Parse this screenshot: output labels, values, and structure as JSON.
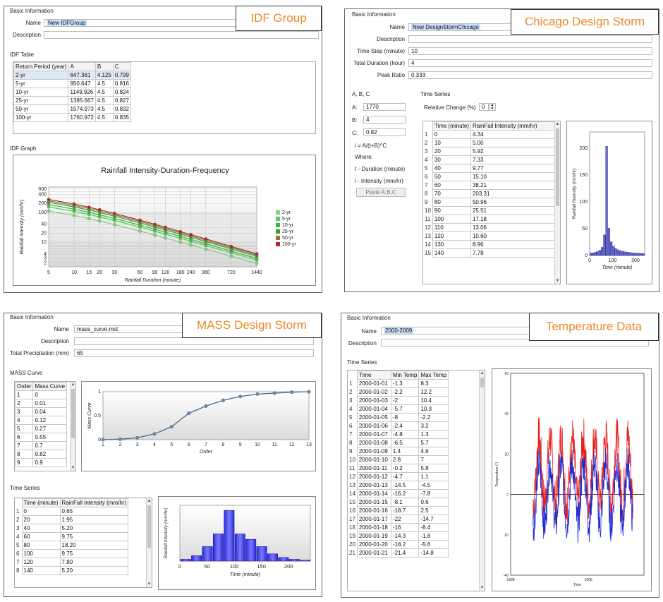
{
  "idf": {
    "tag": "IDF Group",
    "basic_title": "Basic Information",
    "name_label": "Name",
    "name_value": "New IDFGroup",
    "desc_label": "Description",
    "table_title": "IDF Table",
    "columns": [
      "Return Period (year)",
      "A",
      "B",
      "C"
    ],
    "rows": [
      [
        "2-yr",
        "647.361",
        "4.125",
        "0.799"
      ],
      [
        "5-yr",
        "950.647",
        "4.5",
        "0.816"
      ],
      [
        "10-yr",
        "1149.926",
        "4.5",
        "0.824"
      ],
      [
        "25-yr",
        "1385.667",
        "4.5",
        "0.827"
      ],
      [
        "50-yr",
        "1574.973",
        "4.5",
        "0.832"
      ],
      [
        "100-yr",
        "1760.972",
        "4.5",
        "0.835"
      ]
    ],
    "graph_title": "IDF Graph",
    "chart_data": {
      "type": "line",
      "title": "Rainfall Intensity-Duration-Frequency",
      "xlabel": "Rainfall Duration (minute)",
      "ylabel": "Rainfall Intensity (mm/hr)",
      "xscale": "log",
      "yscale": "log",
      "x": [
        5,
        10,
        15,
        20,
        30,
        60,
        90,
        120,
        180,
        240,
        360,
        720,
        1440
      ],
      "xticks": [
        "5",
        "10",
        "15",
        "20",
        "30",
        "60",
        "90",
        "120",
        "180",
        "240",
        "360",
        "720",
        "1440"
      ],
      "yticks": [
        "2",
        "3",
        "4",
        "10",
        "20",
        "40",
        "100",
        "200",
        "400",
        "600"
      ],
      "series": [
        {
          "name": "2-yr",
          "color": "#7ed37e",
          "A": 647.361,
          "B": 4.125,
          "C": 0.799
        },
        {
          "name": "5-yr",
          "color": "#5cc85c",
          "A": 950.647,
          "B": 4.5,
          "C": 0.816
        },
        {
          "name": "10-yr",
          "color": "#3fb83f",
          "A": 1149.926,
          "B": 4.5,
          "C": 0.824
        },
        {
          "name": "25-yr",
          "color": "#2ea62e",
          "A": 1385.667,
          "B": 4.5,
          "C": 0.827
        },
        {
          "name": "50-yr",
          "color": "#8a7a3a",
          "A": 1574.973,
          "B": 4.5,
          "C": 0.832
        },
        {
          "name": "100-yr",
          "color": "#b02a2a",
          "A": 1760.972,
          "B": 4.5,
          "C": 0.835
        }
      ]
    }
  },
  "chicago": {
    "tag": "Chicago Design Storm",
    "basic_title": "Basic Information",
    "name_label": "Name",
    "name_value": "New DesignStormChicago",
    "desc_label": "Description",
    "timestep_label": "Time Step (minute)",
    "timestep_value": "10",
    "duration_label": "Total Duration (hour)",
    "duration_value": "4",
    "peak_label": "Peak Ratio",
    "peak_value": "0.333",
    "abc_title": "A, B, C",
    "a_label": "A:",
    "a_value": "1770",
    "b_label": "B:",
    "b_value": "4",
    "c_label": "C:",
    "c_value": "0.82",
    "formula": "i = A/(t+B)^C",
    "where": "Where:",
    "t_def": "t - Duration (minute)",
    "i_def": "i - Intensity (mm/hr)",
    "paste_label": "Paste A,B,C",
    "ts_title": "Time Series",
    "rel_label": "Relative Change (%)",
    "rel_value": "0",
    "columns": [
      "Time (minute)",
      "RainFall Intensity (mm/hr)"
    ],
    "rows": [
      [
        "1",
        "0",
        "4.34"
      ],
      [
        "2",
        "10",
        "5.00"
      ],
      [
        "3",
        "20",
        "5.92"
      ],
      [
        "4",
        "30",
        "7.33"
      ],
      [
        "5",
        "40",
        "9.77"
      ],
      [
        "6",
        "50",
        "15.10"
      ],
      [
        "7",
        "60",
        "38.21"
      ],
      [
        "8",
        "70",
        "203.31"
      ],
      [
        "9",
        "80",
        "50.96"
      ],
      [
        "10",
        "90",
        "25.51"
      ],
      [
        "11",
        "100",
        "17.18"
      ],
      [
        "12",
        "110",
        "13.06"
      ],
      [
        "13",
        "120",
        "10.60"
      ],
      [
        "14",
        "130",
        "8.96"
      ],
      [
        "15",
        "140",
        "7.78"
      ]
    ],
    "chart_data": {
      "type": "bar",
      "xlabel": "Time (minute)",
      "ylabel": "Rainfall Intensity (mm/hr)",
      "ylim": [
        0,
        230
      ],
      "xlim": [
        0,
        240
      ],
      "yticks": [
        "0",
        "50",
        "100",
        "150",
        "200"
      ],
      "xticks": [
        "0",
        "100",
        "200"
      ],
      "x": [
        0,
        10,
        20,
        30,
        40,
        50,
        60,
        70,
        80,
        90,
        100,
        110,
        120,
        130,
        140,
        150,
        160,
        170,
        180,
        190,
        200,
        210,
        220,
        230
      ],
      "values": [
        4.34,
        5.0,
        5.92,
        7.33,
        9.77,
        15.1,
        38.21,
        203.31,
        50.96,
        25.51,
        17.18,
        13.06,
        10.6,
        8.96,
        7.78,
        6.9,
        6.2,
        5.6,
        5.1,
        4.7,
        4.4,
        4.1,
        3.8,
        3.6
      ]
    }
  },
  "mass": {
    "tag": "MASS Design Storm",
    "basic_title": "Basic Information",
    "name_label": "Name",
    "name_value": "mass_curve.mst",
    "desc_label": "Description",
    "precip_label": "Total Precipitation (mm)",
    "precip_value": "65",
    "curve_title": "MASS Curve",
    "columns": [
      "Order",
      "Mass Curve"
    ],
    "rows": [
      [
        "1",
        "0"
      ],
      [
        "2",
        "0.01"
      ],
      [
        "3",
        "0.04"
      ],
      [
        "4",
        "0.12"
      ],
      [
        "5",
        "0.27"
      ],
      [
        "6",
        "0.55"
      ],
      [
        "7",
        "0.7"
      ],
      [
        "8",
        "0.82"
      ],
      [
        "9",
        "0.9"
      ]
    ],
    "curve_chart": {
      "type": "line",
      "xlabel": "Order",
      "ylabel": "Mass Curve",
      "x": [
        1,
        2,
        3,
        4,
        5,
        6,
        7,
        8,
        9,
        10,
        11,
        12,
        13
      ],
      "values": [
        0,
        0.01,
        0.04,
        0.12,
        0.27,
        0.55,
        0.7,
        0.82,
        0.9,
        0.95,
        0.97,
        0.99,
        1.0
      ],
      "ylim": [
        0,
        1
      ],
      "yticks": [
        "0",
        "0.5",
        "1"
      ],
      "xticks": [
        "1",
        "2",
        "3",
        "4",
        "5",
        "6",
        "7",
        "8",
        "9",
        "10",
        "11",
        "12",
        "13"
      ]
    },
    "ts_title": "Time Series",
    "ts_columns": [
      "Time (minute)",
      "RainFall Intensity (mm/hr)"
    ],
    "ts_rows": [
      [
        "1",
        "0",
        "0.65"
      ],
      [
        "2",
        "20",
        "1.95"
      ],
      [
        "3",
        "40",
        "5.20"
      ],
      [
        "4",
        "60",
        "9.75"
      ],
      [
        "5",
        "80",
        "18.20"
      ],
      [
        "6",
        "100",
        "9.75"
      ],
      [
        "7",
        "120",
        "7.80"
      ],
      [
        "8",
        "140",
        "5.20"
      ]
    ],
    "chart_data": {
      "type": "bar",
      "xlabel": "Time (minute)",
      "ylabel": "Rainfall Intensity (mm/hr)",
      "x": [
        0,
        20,
        40,
        60,
        80,
        100,
        120,
        140,
        160,
        180,
        200,
        220
      ],
      "values": [
        0.65,
        1.95,
        5.2,
        9.75,
        18.2,
        9.75,
        7.8,
        5.2,
        2.6,
        1.3,
        0.65,
        0.3
      ],
      "xlim": [
        0,
        240
      ],
      "ylim": [
        0,
        20
      ],
      "xticks": [
        "0",
        "50",
        "100",
        "150",
        "200"
      ]
    }
  },
  "temp": {
    "tag": "Temperature Data",
    "basic_title": "Basic Information",
    "name_label": "Name",
    "name_value": "2000-2009",
    "desc_label": "Description",
    "ts_title": "Time Series",
    "columns": [
      "Time",
      "Min Temp",
      "Max Temp"
    ],
    "rows": [
      [
        "1",
        "2000-01-01",
        "-1.3",
        "8.3"
      ],
      [
        "2",
        "2000-01-02",
        "-2.2",
        "12.2"
      ],
      [
        "3",
        "2000-01-03",
        "-2",
        "10.4"
      ],
      [
        "4",
        "2000-01-04",
        "-5.7",
        "10.3"
      ],
      [
        "5",
        "2000-01-05",
        "-8",
        "-2.2"
      ],
      [
        "6",
        "2000-01-06",
        "-2.4",
        "3.2"
      ],
      [
        "7",
        "2000-01-07",
        "-4.8",
        "1.3"
      ],
      [
        "8",
        "2000-01-08",
        "-6.5",
        "5.7"
      ],
      [
        "9",
        "2000-01-09",
        "1.4",
        "4.6"
      ],
      [
        "10",
        "2000-01-10",
        "2.8",
        "7"
      ],
      [
        "11",
        "2000-01-11",
        "-0.2",
        "5.8"
      ],
      [
        "12",
        "2000-01-12",
        "-4.7",
        "1.1"
      ],
      [
        "13",
        "2000-01-13",
        "-14.5",
        "-4.5"
      ],
      [
        "14",
        "2000-01-14",
        "-16.2",
        "-7.8"
      ],
      [
        "15",
        "2000-01-15",
        "-8.1",
        "0.6"
      ],
      [
        "16",
        "2000-01-16",
        "-18.7",
        "2.5"
      ],
      [
        "17",
        "2000-01-17",
        "-22",
        "-14.7"
      ],
      [
        "18",
        "2000-01-18",
        "-16",
        "-8.4"
      ],
      [
        "19",
        "2000-01-19",
        "-14.3",
        "-1.8"
      ],
      [
        "20",
        "2000-01-20",
        "-18.2",
        "-5.6"
      ],
      [
        "21",
        "2000-01-21",
        "-21.4",
        "-14.8"
      ]
    ],
    "chart_data": {
      "type": "line",
      "xlabel": "Time",
      "ylabel": "Temperature (°)",
      "ylim": [
        -40,
        60
      ],
      "yticks": [
        "-40",
        "-20",
        "0",
        "20",
        "40",
        "60"
      ],
      "xticks": [
        "1998",
        "2005"
      ],
      "x_range": [
        1998,
        2010
      ],
      "data_range": [
        2000,
        2009
      ],
      "series": [
        {
          "name": "Max Temp",
          "color": "#e8201a"
        },
        {
          "name": "Min Temp",
          "color": "#1a2ad8"
        }
      ]
    }
  }
}
